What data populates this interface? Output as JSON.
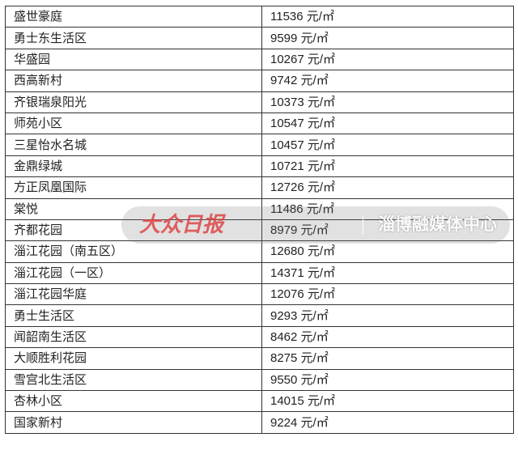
{
  "unit": "元/㎡",
  "rows": [
    {
      "name": "盛世豪庭",
      "price": "11536"
    },
    {
      "name": "勇士东生活区",
      "price": "9599"
    },
    {
      "name": "华盛园",
      "price": "10267"
    },
    {
      "name": "西高新村",
      "price": "9742"
    },
    {
      "name": "齐银瑞泉阳光",
      "price": "10373"
    },
    {
      "name": "师苑小区",
      "price": "10547"
    },
    {
      "name": "三星怡水名城",
      "price": "10457"
    },
    {
      "name": "金鼎绿城",
      "price": "10721"
    },
    {
      "name": "方正凤凰国际",
      "price": "12726"
    },
    {
      "name": "棠悦",
      "price": "11486"
    },
    {
      "name": "齐都花园",
      "price": "8979"
    },
    {
      "name": "淄江花园（南五区）",
      "price": "12680"
    },
    {
      "name": "淄江花园（一区）",
      "price": "14371"
    },
    {
      "name": "淄江花园华庭",
      "price": "12076"
    },
    {
      "name": "勇士生活区",
      "price": "9293"
    },
    {
      "name": "闻韶南生活区",
      "price": "8462"
    },
    {
      "name": "大顺胜利花园",
      "price": "8275"
    },
    {
      "name": "雪宫北生活区",
      "price": "9550"
    },
    {
      "name": "杏林小区",
      "price": "14015"
    },
    {
      "name": "国家新村",
      "price": "9224"
    }
  ],
  "watermark": {
    "logo": "大众日报",
    "org": "淄博融媒体中心"
  }
}
